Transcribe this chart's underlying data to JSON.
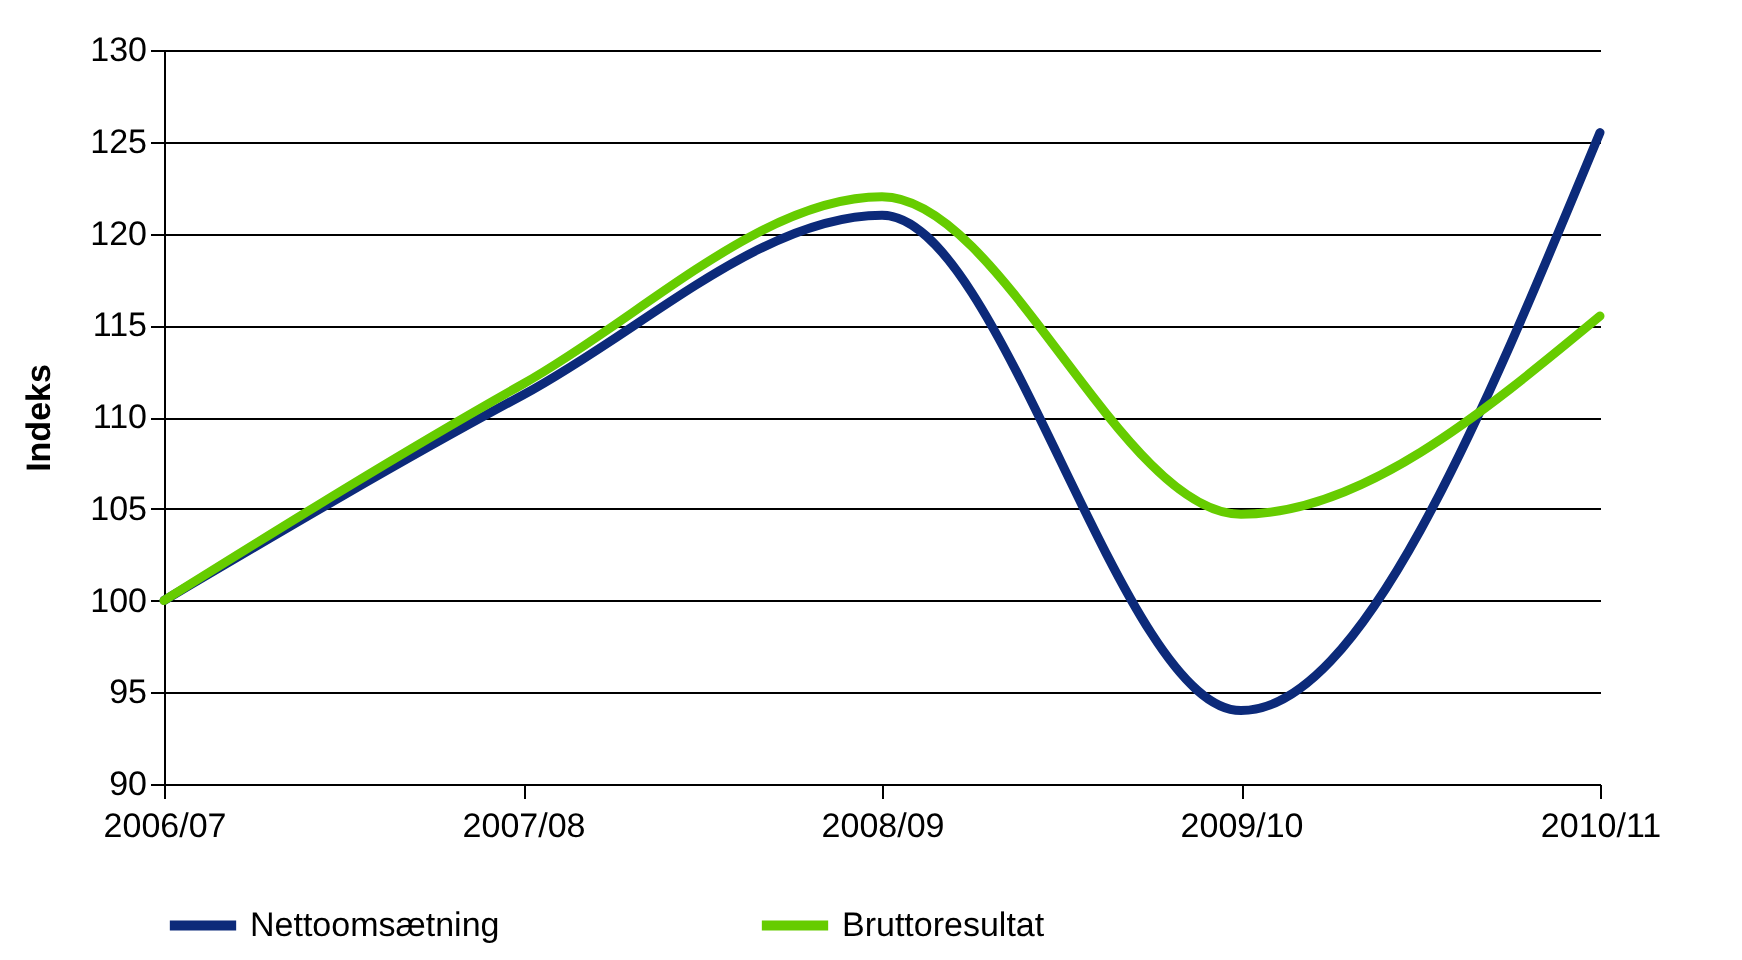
{
  "chart_data": {
    "type": "line",
    "ylabel": "Indeks",
    "categories": [
      "2006/07",
      "2007/08",
      "2008/09",
      "2009/10",
      "2010/11"
    ],
    "series": [
      {
        "name": "Nettoomsætning",
        "color": "#0c2a7a",
        "values": [
          100,
          111.2,
          121,
          94,
          125.5
        ]
      },
      {
        "name": "Bruttoresultat",
        "color": "#66cc00",
        "values": [
          100,
          111.8,
          122,
          104.7,
          115.5
        ]
      }
    ],
    "ylim": [
      90,
      130
    ],
    "yticks": [
      90,
      95,
      100,
      105,
      110,
      115,
      120,
      125,
      130
    ],
    "grid": "y",
    "legend": "bottom",
    "marker": "none",
    "line_style": "solid"
  }
}
